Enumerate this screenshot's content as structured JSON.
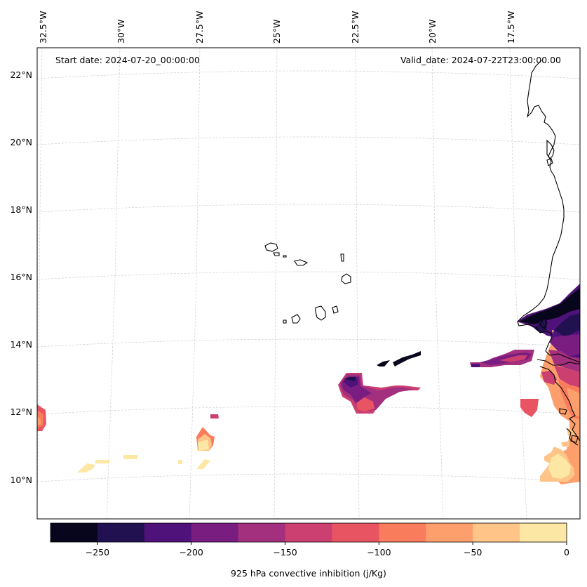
{
  "header": {
    "start_date": "Start date: 2024-07-20_00:00:00",
    "valid_date": "Valid_date: 2024-07-22T23:00:00.00"
  },
  "map": {
    "lon_labels": [
      "32.5°W",
      "30°W",
      "27.5°W",
      "25°W",
      "22.5°W",
      "20°W",
      "17.5°W"
    ],
    "lat_labels": [
      "22°N",
      "20°N",
      "18°N",
      "16°N",
      "14°N",
      "12°N",
      "10°N"
    ],
    "grid_lines": true
  },
  "colorbar": {
    "label": "925 hPa convective inhibition (j/Kg)",
    "ticks": [
      "−250",
      "−200",
      "−150",
      "−100",
      "−50",
      "0"
    ],
    "range": [
      -275,
      0
    ],
    "colors": [
      "#07061c",
      "#221150",
      "#4f127b",
      "#7a1d81",
      "#a3307e",
      "#cc3f71",
      "#e95462",
      "#f97c5d",
      "#fd9f6c",
      "#fec488",
      "#fde7a4"
    ]
  },
  "chart_data": {
    "type": "heatmap",
    "title": "",
    "variable": "925 hPa convective inhibition (j/Kg)",
    "levels": [
      -275,
      -250,
      -225,
      -200,
      -175,
      -150,
      -125,
      -100,
      -75,
      -50,
      -25,
      0
    ],
    "regions": [
      {
        "area": "Senegal/Gambia coast",
        "min": -275,
        "max": 0
      },
      {
        "area": "offshore near 13°N 21°W",
        "min": -250,
        "max": -75
      },
      {
        "area": "offshore near 13.5°N 18°W",
        "min": -225,
        "max": -125
      },
      {
        "area": "near 12°N 17°W",
        "min": -125,
        "max": -75
      },
      {
        "area": "Guinea-Bissau coast 10°N",
        "min": -50,
        "max": 0
      },
      {
        "area": "western edge 12°N 33°W",
        "min": -125,
        "max": -25
      },
      {
        "area": "near 11°N 27.5°W",
        "min": -125,
        "max": 0
      },
      {
        "area": "near 10.5°N 30°W",
        "min": -25,
        "max": 0
      }
    ]
  }
}
